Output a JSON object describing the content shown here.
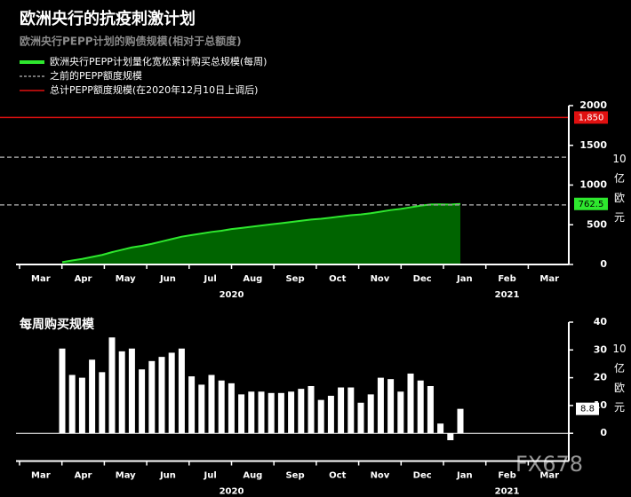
{
  "chart_data": [
    {
      "type": "area",
      "title": "欧洲央行的抗疫刺激计划",
      "subtitle": "欧洲央行PEPP计划的购债规模(相对于总额度)",
      "unit": "10亿欧元",
      "x_months": [
        "Mar",
        "Apr",
        "May",
        "Jun",
        "Jul",
        "Aug",
        "Sep",
        "Oct",
        "Nov",
        "Dec",
        "Jan",
        "Feb",
        "Mar"
      ],
      "x_years": [
        "2020",
        "2021"
      ],
      "categories": [
        null,
        null,
        null,
        null,
        null,
        null,
        null,
        null,
        null,
        null,
        null,
        null,
        null,
        null,
        null,
        null,
        null,
        null,
        null,
        null,
        null,
        null,
        null,
        null,
        null,
        null,
        null,
        null,
        null,
        null,
        null,
        null,
        null,
        null,
        null,
        null,
        null,
        null,
        null,
        null,
        null
      ],
      "series": [
        {
          "name": "欧洲央行PEPP计划量化宽松累计购买总规模(每周)",
          "color": "#2ee82e",
          "fill": "#006400",
          "values": [
            30,
            50,
            70,
            95,
            120,
            155,
            185,
            215,
            235,
            260,
            290,
            320,
            350,
            370,
            390,
            410,
            425,
            445,
            460,
            475,
            490,
            505,
            520,
            535,
            550,
            565,
            575,
            590,
            605,
            620,
            630,
            645,
            665,
            685,
            700,
            720,
            740,
            755,
            757,
            754,
            762.5
          ]
        }
      ],
      "reference_lines": [
        {
          "name": "之前的PEPP额度规模",
          "color": "#9a9a9a",
          "dashed": true,
          "values": [
            750,
            1350
          ]
        },
        {
          "name": "总计PEPP额度规模(在2020年12月10日上调后)",
          "color": "#e01010",
          "dashed": false,
          "value": 1850,
          "label": "1,850"
        }
      ],
      "ylim": [
        0,
        2000
      ],
      "yticks": [
        0,
        500,
        1000,
        1500,
        2000
      ]
    },
    {
      "type": "bar",
      "title": "每周购买规模",
      "unit": "10亿欧元",
      "x_months": [
        "Mar",
        "Apr",
        "May",
        "Jun",
        "Jul",
        "Aug",
        "Sep",
        "Oct",
        "Nov",
        "Dec",
        "Jan",
        "Feb",
        "Mar"
      ],
      "x_years": [
        "2020",
        "2021"
      ],
      "categories": [
        null,
        null,
        null,
        null,
        null,
        null,
        null,
        null,
        null,
        null,
        null,
        null,
        null,
        null,
        null,
        null,
        null,
        null,
        null,
        null,
        null,
        null,
        null,
        null,
        null,
        null,
        null,
        null,
        null,
        null,
        null,
        null,
        null,
        null,
        null,
        null,
        null,
        null,
        null,
        null,
        null
      ],
      "color": "#ffffff",
      "values": [
        30.5,
        21,
        20,
        26.5,
        22,
        34.5,
        29.5,
        30.5,
        23,
        26,
        27.5,
        29,
        30.5,
        20.5,
        17.5,
        21,
        19,
        18,
        14,
        15,
        15,
        14.5,
        14.5,
        15,
        16,
        17,
        12,
        13.5,
        16.5,
        16.5,
        11,
        14,
        20,
        19.5,
        15,
        21.5,
        19,
        17,
        3.5,
        -2.5,
        8.8
      ],
      "ylim": [
        -10,
        40
      ],
      "yticks": [
        0,
        10,
        20,
        30,
        40
      ]
    }
  ],
  "watermark": "FX678"
}
